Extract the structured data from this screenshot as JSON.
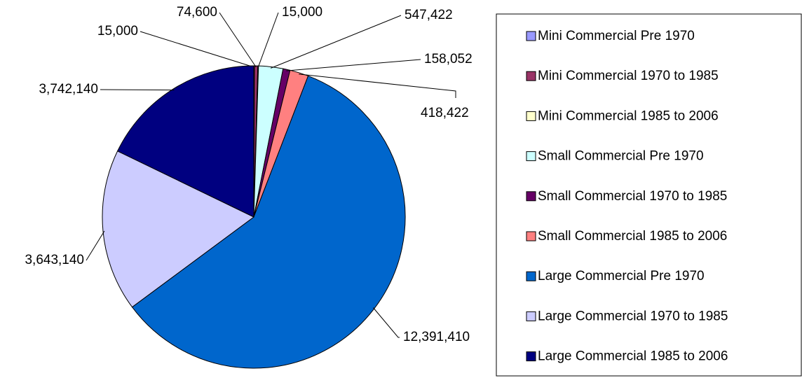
{
  "chart_data": {
    "type": "pie",
    "categories": [
      "Mini Commercial Pre 1970",
      "Mini Commercial 1970 to 1985",
      "Mini Commercial 1985 to 2006",
      "Small Commercial Pre 1970",
      "Small Commercial 1970 to 1985",
      "Small Commercial 1985 to 2006",
      "Large Commercial Pre 1970",
      "Large Commercial 1970 to 1985",
      "Large Commercial 1985 to 2006"
    ],
    "values": [
      15000,
      74600,
      15000,
      547422,
      158052,
      418422,
      12391410,
      3643140,
      3742140
    ],
    "value_labels": [
      "15,000",
      "74,600",
      "15,000",
      "547,422",
      "158,052",
      "418,422",
      "12,391,410",
      "3,643,140",
      "3,742,140"
    ],
    "colors": [
      "#9999ff",
      "#993366",
      "#ffffcc",
      "#ccffff",
      "#660066",
      "#ff8080",
      "#0066cc",
      "#ccccff",
      "#000080"
    ],
    "legend": "right"
  }
}
